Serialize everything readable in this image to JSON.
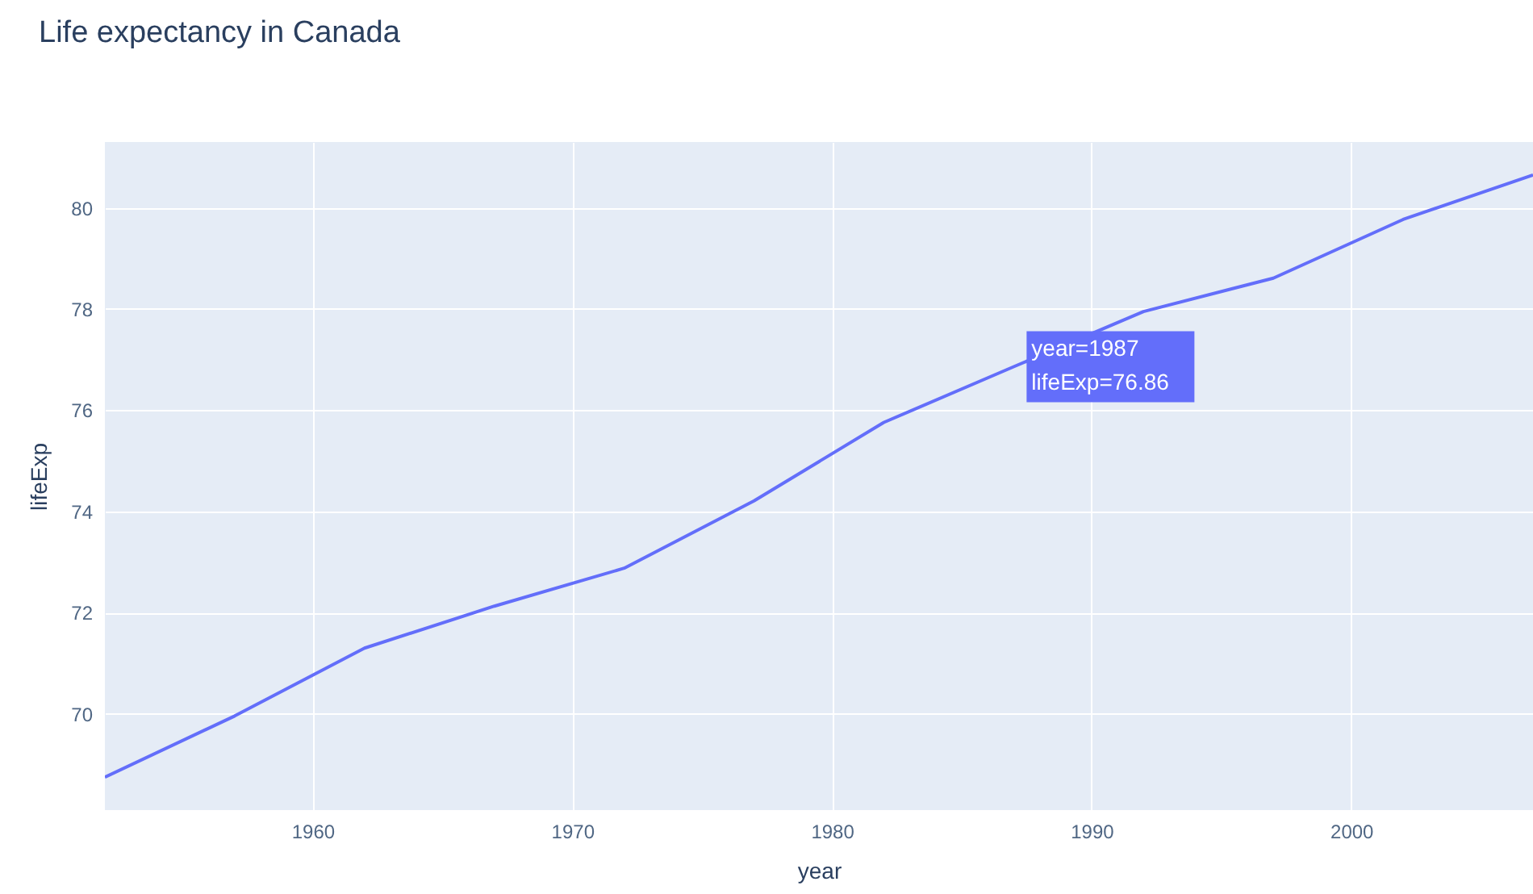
{
  "chart_data": {
    "type": "line",
    "title": "Life expectancy in Canada",
    "xlabel": "year",
    "ylabel": "lifeExp",
    "x": [
      1952,
      1957,
      1962,
      1967,
      1972,
      1977,
      1982,
      1987,
      1992,
      1997,
      2002,
      2007
    ],
    "series": [
      {
        "color": "#636efa",
        "values": [
          68.75,
          69.96,
          71.3,
          72.13,
          72.88,
          74.21,
          75.76,
          76.86,
          77.95,
          78.61,
          79.77,
          80.65
        ]
      }
    ],
    "xlim": [
      1952,
      2007
    ],
    "xticks": [
      1960,
      1970,
      1980,
      1990,
      2000
    ],
    "ylim": [
      68.1,
      81.3
    ],
    "yticks": [
      70,
      72,
      74,
      76,
      78,
      80
    ],
    "grid": true,
    "marker": "none",
    "line_style": "solid",
    "annotations": [
      {
        "text": "year=1987\nlifeExp=76.86",
        "x": 1987,
        "y": 76.86
      }
    ]
  }
}
